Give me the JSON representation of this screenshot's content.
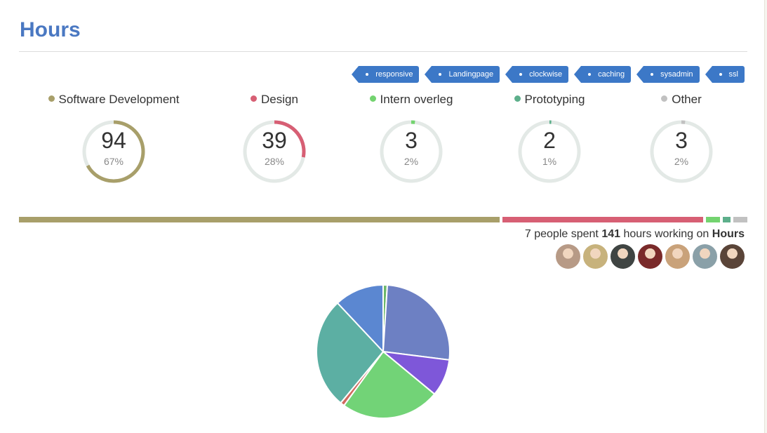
{
  "page": {
    "title": "Hours"
  },
  "tags": [
    {
      "label": "responsive"
    },
    {
      "label": "Landingpage"
    },
    {
      "label": "clockwise"
    },
    {
      "label": "caching"
    },
    {
      "label": "sysadmin"
    },
    {
      "label": "ssl"
    }
  ],
  "categories": [
    {
      "name": "Software Development",
      "hours": "94",
      "percent": "67%",
      "fraction": 0.67,
      "color": "#a89f6a"
    },
    {
      "name": "Design",
      "hours": "39",
      "percent": "28%",
      "fraction": 0.28,
      "color": "#d75f74"
    },
    {
      "name": "Intern overleg",
      "hours": "3",
      "percent": "2%",
      "fraction": 0.02,
      "color": "#73d36f"
    },
    {
      "name": "Prototyping",
      "hours": "2",
      "percent": "1%",
      "fraction": 0.01,
      "color": "#5daf8b"
    },
    {
      "name": "Other",
      "hours": "3",
      "percent": "2%",
      "fraction": 0.02,
      "color": "#c1c1c1"
    }
  ],
  "summary": {
    "prefix": "7 people spent",
    "hours": "141",
    "middle": "hours working on",
    "project": "Hours"
  },
  "people": [
    {
      "icon": "person-avatar-icon",
      "color": "#b79a86"
    },
    {
      "icon": "person-avatar-icon",
      "color": "#c7b27c"
    },
    {
      "icon": "person-avatar-icon",
      "color": "#3f4442"
    },
    {
      "icon": "person-avatar-icon",
      "color": "#7a2a2a"
    },
    {
      "icon": "person-avatar-icon",
      "color": "#c9a27a"
    },
    {
      "icon": "person-avatar-icon",
      "color": "#8aa0a8"
    },
    {
      "icon": "person-avatar-icon",
      "color": "#5a4438"
    }
  ],
  "chart_data": {
    "type": "pie",
    "slices": [
      {
        "value": 1,
        "color": "#6cb86a"
      },
      {
        "value": 26,
        "color": "#6d80c3"
      },
      {
        "value": 9,
        "color": "#7e57d9"
      },
      {
        "value": 24,
        "color": "#72d377"
      },
      {
        "value": 1,
        "color": "#d06a5e"
      },
      {
        "value": 27,
        "color": "#5cafa3"
      },
      {
        "value": 12,
        "color": "#5b87d1"
      }
    ]
  }
}
